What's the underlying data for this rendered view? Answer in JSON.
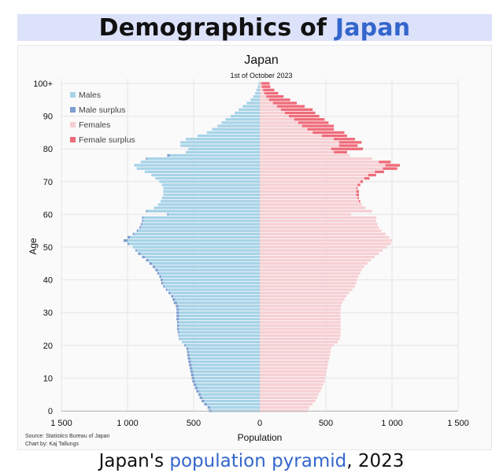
{
  "header": {
    "title_prefix": "Demographics of ",
    "title_link": "Japan"
  },
  "caption": {
    "text_prefix": "Japan's ",
    "link": "population pyramid",
    "text_suffix": ", 2023"
  },
  "colors": {
    "males": "#a6d3e8",
    "male_surplus": "#7d9ed0",
    "females": "#f6cfd3",
    "female_surplus": "#ef6b79",
    "link": "#3366cc",
    "header_band": "#dde2fb"
  },
  "chart_data": {
    "type": "bar",
    "orientation": "horizontal-pyramid",
    "title": "Japan",
    "subtitle": "1st of October 2023",
    "xlabel": "Population",
    "ylabel": "Age",
    "source": "Source: Statistics Bureau of Japan",
    "author": "Chart by: Kaj Tallungs",
    "x_range": [
      -1500,
      1500
    ],
    "x_ticks": [
      -1500,
      -1000,
      -500,
      0,
      500,
      1000,
      1500
    ],
    "x_tick_labels": [
      "1 500",
      "1 000",
      "500",
      "0",
      "500",
      "1 000",
      "1 500"
    ],
    "y_range": [
      0,
      100
    ],
    "y_ticks": [
      0,
      10,
      20,
      30,
      40,
      50,
      60,
      70,
      80,
      90,
      100
    ],
    "y_tick_labels": [
      "0",
      "10",
      "20",
      "30",
      "40",
      "50",
      "60",
      "70",
      "80",
      "90",
      "100+"
    ],
    "grid": true,
    "legend_position": "top-left",
    "legend": [
      "Males",
      "Male surplus",
      "Females",
      "Female surplus"
    ],
    "ages": [
      0,
      1,
      2,
      3,
      4,
      5,
      6,
      7,
      8,
      9,
      10,
      11,
      12,
      13,
      14,
      15,
      16,
      17,
      18,
      19,
      20,
      21,
      22,
      23,
      24,
      25,
      26,
      27,
      28,
      29,
      30,
      31,
      32,
      33,
      34,
      35,
      36,
      37,
      38,
      39,
      40,
      41,
      42,
      43,
      44,
      45,
      46,
      47,
      48,
      49,
      50,
      51,
      52,
      53,
      54,
      55,
      56,
      57,
      58,
      59,
      60,
      61,
      62,
      63,
      64,
      65,
      66,
      67,
      68,
      69,
      70,
      71,
      72,
      73,
      74,
      75,
      76,
      77,
      78,
      79,
      80,
      81,
      82,
      83,
      84,
      85,
      86,
      87,
      88,
      89,
      90,
      91,
      92,
      93,
      94,
      95,
      96,
      97,
      98,
      99,
      100
    ],
    "series": [
      {
        "name": "Males",
        "values": [
          385,
          395,
          420,
          440,
          455,
          465,
          480,
          490,
          500,
          510,
          515,
          520,
          525,
          530,
          535,
          540,
          545,
          548,
          550,
          555,
          570,
          590,
          610,
          615,
          620,
          625,
          625,
          625,
          630,
          630,
          630,
          630,
          635,
          650,
          660,
          670,
          690,
          710,
          730,
          745,
          750,
          760,
          775,
          790,
          810,
          835,
          860,
          890,
          920,
          940,
          960,
          1000,
          1030,
          1000,
          960,
          930,
          910,
          900,
          890,
          890,
          700,
          860,
          800,
          770,
          750,
          740,
          730,
          730,
          730,
          740,
          760,
          790,
          820,
          870,
          930,
          950,
          900,
          860,
          700,
          560,
          540,
          600,
          600,
          560,
          470,
          400,
          360,
          320,
          290,
          260,
          220,
          190,
          160,
          130,
          100,
          70,
          50,
          35,
          25,
          15,
          10
        ]
      },
      {
        "name": "Females",
        "values": [
          365,
          375,
          400,
          420,
          435,
          445,
          460,
          470,
          480,
          490,
          495,
          500,
          505,
          510,
          515,
          520,
          525,
          530,
          535,
          540,
          560,
          590,
          605,
          610,
          610,
          612,
          612,
          612,
          612,
          610,
          610,
          612,
          615,
          625,
          640,
          655,
          675,
          700,
          720,
          730,
          735,
          745,
          760,
          770,
          790,
          815,
          840,
          870,
          900,
          930,
          960,
          990,
          1000,
          980,
          950,
          920,
          900,
          890,
          880,
          880,
          690,
          850,
          800,
          770,
          760,
          750,
          750,
          750,
          740,
          760,
          780,
          830,
          880,
          940,
          1040,
          1060,
          990,
          850,
          680,
          660,
          780,
          740,
          770,
          720,
          660,
          640,
          560,
          560,
          520,
          490,
          450,
          420,
          400,
          340,
          280,
          230,
          180,
          140,
          110,
          80,
          75
        ]
      }
    ]
  }
}
